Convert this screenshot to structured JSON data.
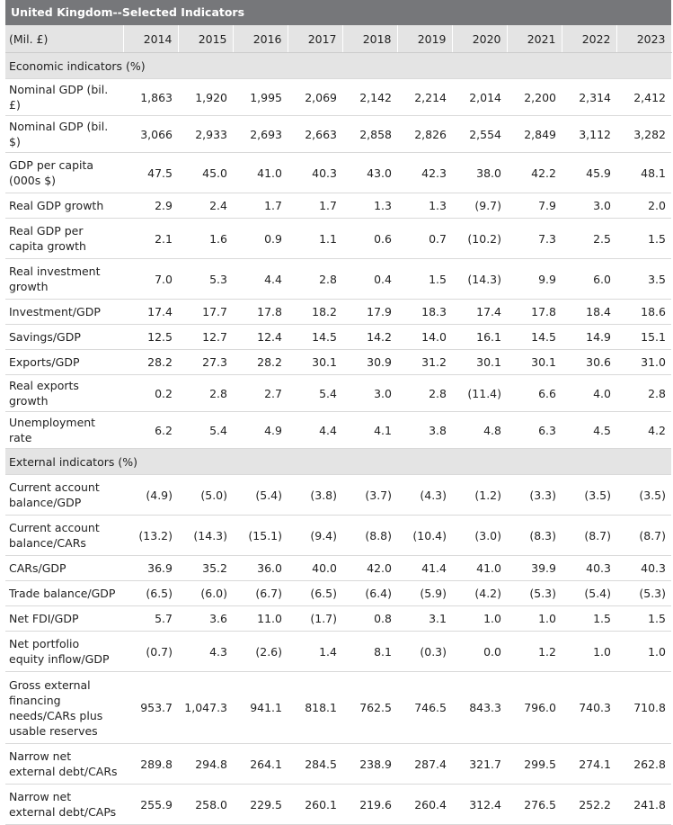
{
  "title": "United Kingdom--Selected Indicators",
  "header": {
    "unit_label": "(Mil. £)",
    "years": [
      "2014",
      "2015",
      "2016",
      "2017",
      "2018",
      "2019",
      "2020",
      "2021",
      "2022",
      "2023"
    ]
  },
  "sections": [
    {
      "label": "Economic indicators (%)",
      "rows": [
        {
          "label": "Nominal GDP (bil. £)",
          "values": [
            "1,863",
            "1,920",
            "1,995",
            "2,069",
            "2,142",
            "2,214",
            "2,014",
            "2,200",
            "2,314",
            "2,412"
          ]
        },
        {
          "label": "Nominal GDP (bil. $)",
          "values": [
            "3,066",
            "2,933",
            "2,693",
            "2,663",
            "2,858",
            "2,826",
            "2,554",
            "2,849",
            "3,112",
            "3,282"
          ]
        },
        {
          "label": "GDP per capita (000s $)",
          "values": [
            "47.5",
            "45.0",
            "41.0",
            "40.3",
            "43.0",
            "42.3",
            "38.0",
            "42.2",
            "45.9",
            "48.1"
          ]
        },
        {
          "label": "Real GDP growth",
          "values": [
            "2.9",
            "2.4",
            "1.7",
            "1.7",
            "1.3",
            "1.3",
            "(9.7)",
            "7.9",
            "3.0",
            "2.0"
          ]
        },
        {
          "label": "Real GDP per capita growth",
          "values": [
            "2.1",
            "1.6",
            "0.9",
            "1.1",
            "0.6",
            "0.7",
            "(10.2)",
            "7.3",
            "2.5",
            "1.5"
          ]
        },
        {
          "label": "Real investment growth",
          "values": [
            "7.0",
            "5.3",
            "4.4",
            "2.8",
            "0.4",
            "1.5",
            "(14.3)",
            "9.9",
            "6.0",
            "3.5"
          ]
        },
        {
          "label": "Investment/GDP",
          "values": [
            "17.4",
            "17.7",
            "17.8",
            "18.2",
            "17.9",
            "18.3",
            "17.4",
            "17.8",
            "18.4",
            "18.6"
          ]
        },
        {
          "label": "Savings/GDP",
          "values": [
            "12.5",
            "12.7",
            "12.4",
            "14.5",
            "14.2",
            "14.0",
            "16.1",
            "14.5",
            "14.9",
            "15.1"
          ]
        },
        {
          "label": "Exports/GDP",
          "values": [
            "28.2",
            "27.3",
            "28.2",
            "30.1",
            "30.9",
            "31.2",
            "30.1",
            "30.1",
            "30.6",
            "31.0"
          ]
        },
        {
          "label": "Real exports growth",
          "values": [
            "0.2",
            "2.8",
            "2.7",
            "5.4",
            "3.0",
            "2.8",
            "(11.4)",
            "6.6",
            "4.0",
            "2.8"
          ]
        },
        {
          "label": "Unemployment rate",
          "values": [
            "6.2",
            "5.4",
            "4.9",
            "4.4",
            "4.1",
            "3.8",
            "4.8",
            "6.3",
            "4.5",
            "4.2"
          ]
        }
      ]
    },
    {
      "label": "External indicators (%)",
      "rows": [
        {
          "label": "Current account balance/GDP",
          "values": [
            "(4.9)",
            "(5.0)",
            "(5.4)",
            "(3.8)",
            "(3.7)",
            "(4.3)",
            "(1.2)",
            "(3.3)",
            "(3.5)",
            "(3.5)"
          ]
        },
        {
          "label": "Current account balance/CARs",
          "values": [
            "(13.2)",
            "(14.3)",
            "(15.1)",
            "(9.4)",
            "(8.8)",
            "(10.4)",
            "(3.0)",
            "(8.3)",
            "(8.7)",
            "(8.7)"
          ]
        },
        {
          "label": "CARs/GDP",
          "values": [
            "36.9",
            "35.2",
            "36.0",
            "40.0",
            "42.0",
            "41.4",
            "41.0",
            "39.9",
            "40.3",
            "40.3"
          ]
        },
        {
          "label": "Trade balance/GDP",
          "values": [
            "(6.5)",
            "(6.0)",
            "(6.7)",
            "(6.5)",
            "(6.4)",
            "(5.9)",
            "(4.2)",
            "(5.3)",
            "(5.4)",
            "(5.3)"
          ]
        },
        {
          "label": "Net FDI/GDP",
          "values": [
            "5.7",
            "3.6",
            "11.0",
            "(1.7)",
            "0.8",
            "3.1",
            "1.0",
            "1.0",
            "1.5",
            "1.5"
          ]
        },
        {
          "label": "Net portfolio equity inflow/GDP",
          "values": [
            "(0.7)",
            "4.3",
            "(2.6)",
            "1.4",
            "8.1",
            "(0.3)",
            "0.0",
            "1.2",
            "1.0",
            "1.0"
          ]
        },
        {
          "label": "Gross external financing needs/CARs plus usable reserves",
          "values": [
            "953.7",
            "1,047.3",
            "941.1",
            "818.1",
            "762.5",
            "746.5",
            "843.3",
            "796.0",
            "740.3",
            "710.8"
          ]
        },
        {
          "label": "Narrow net external debt/CARs",
          "values": [
            "289.8",
            "294.8",
            "264.1",
            "284.5",
            "238.9",
            "287.4",
            "321.7",
            "299.5",
            "274.1",
            "262.8"
          ]
        },
        {
          "label": "Narrow net external debt/CAPs",
          "values": [
            "255.9",
            "258.0",
            "229.5",
            "260.1",
            "219.6",
            "260.4",
            "312.4",
            "276.5",
            "252.2",
            "241.8"
          ]
        }
      ]
    }
  ]
}
